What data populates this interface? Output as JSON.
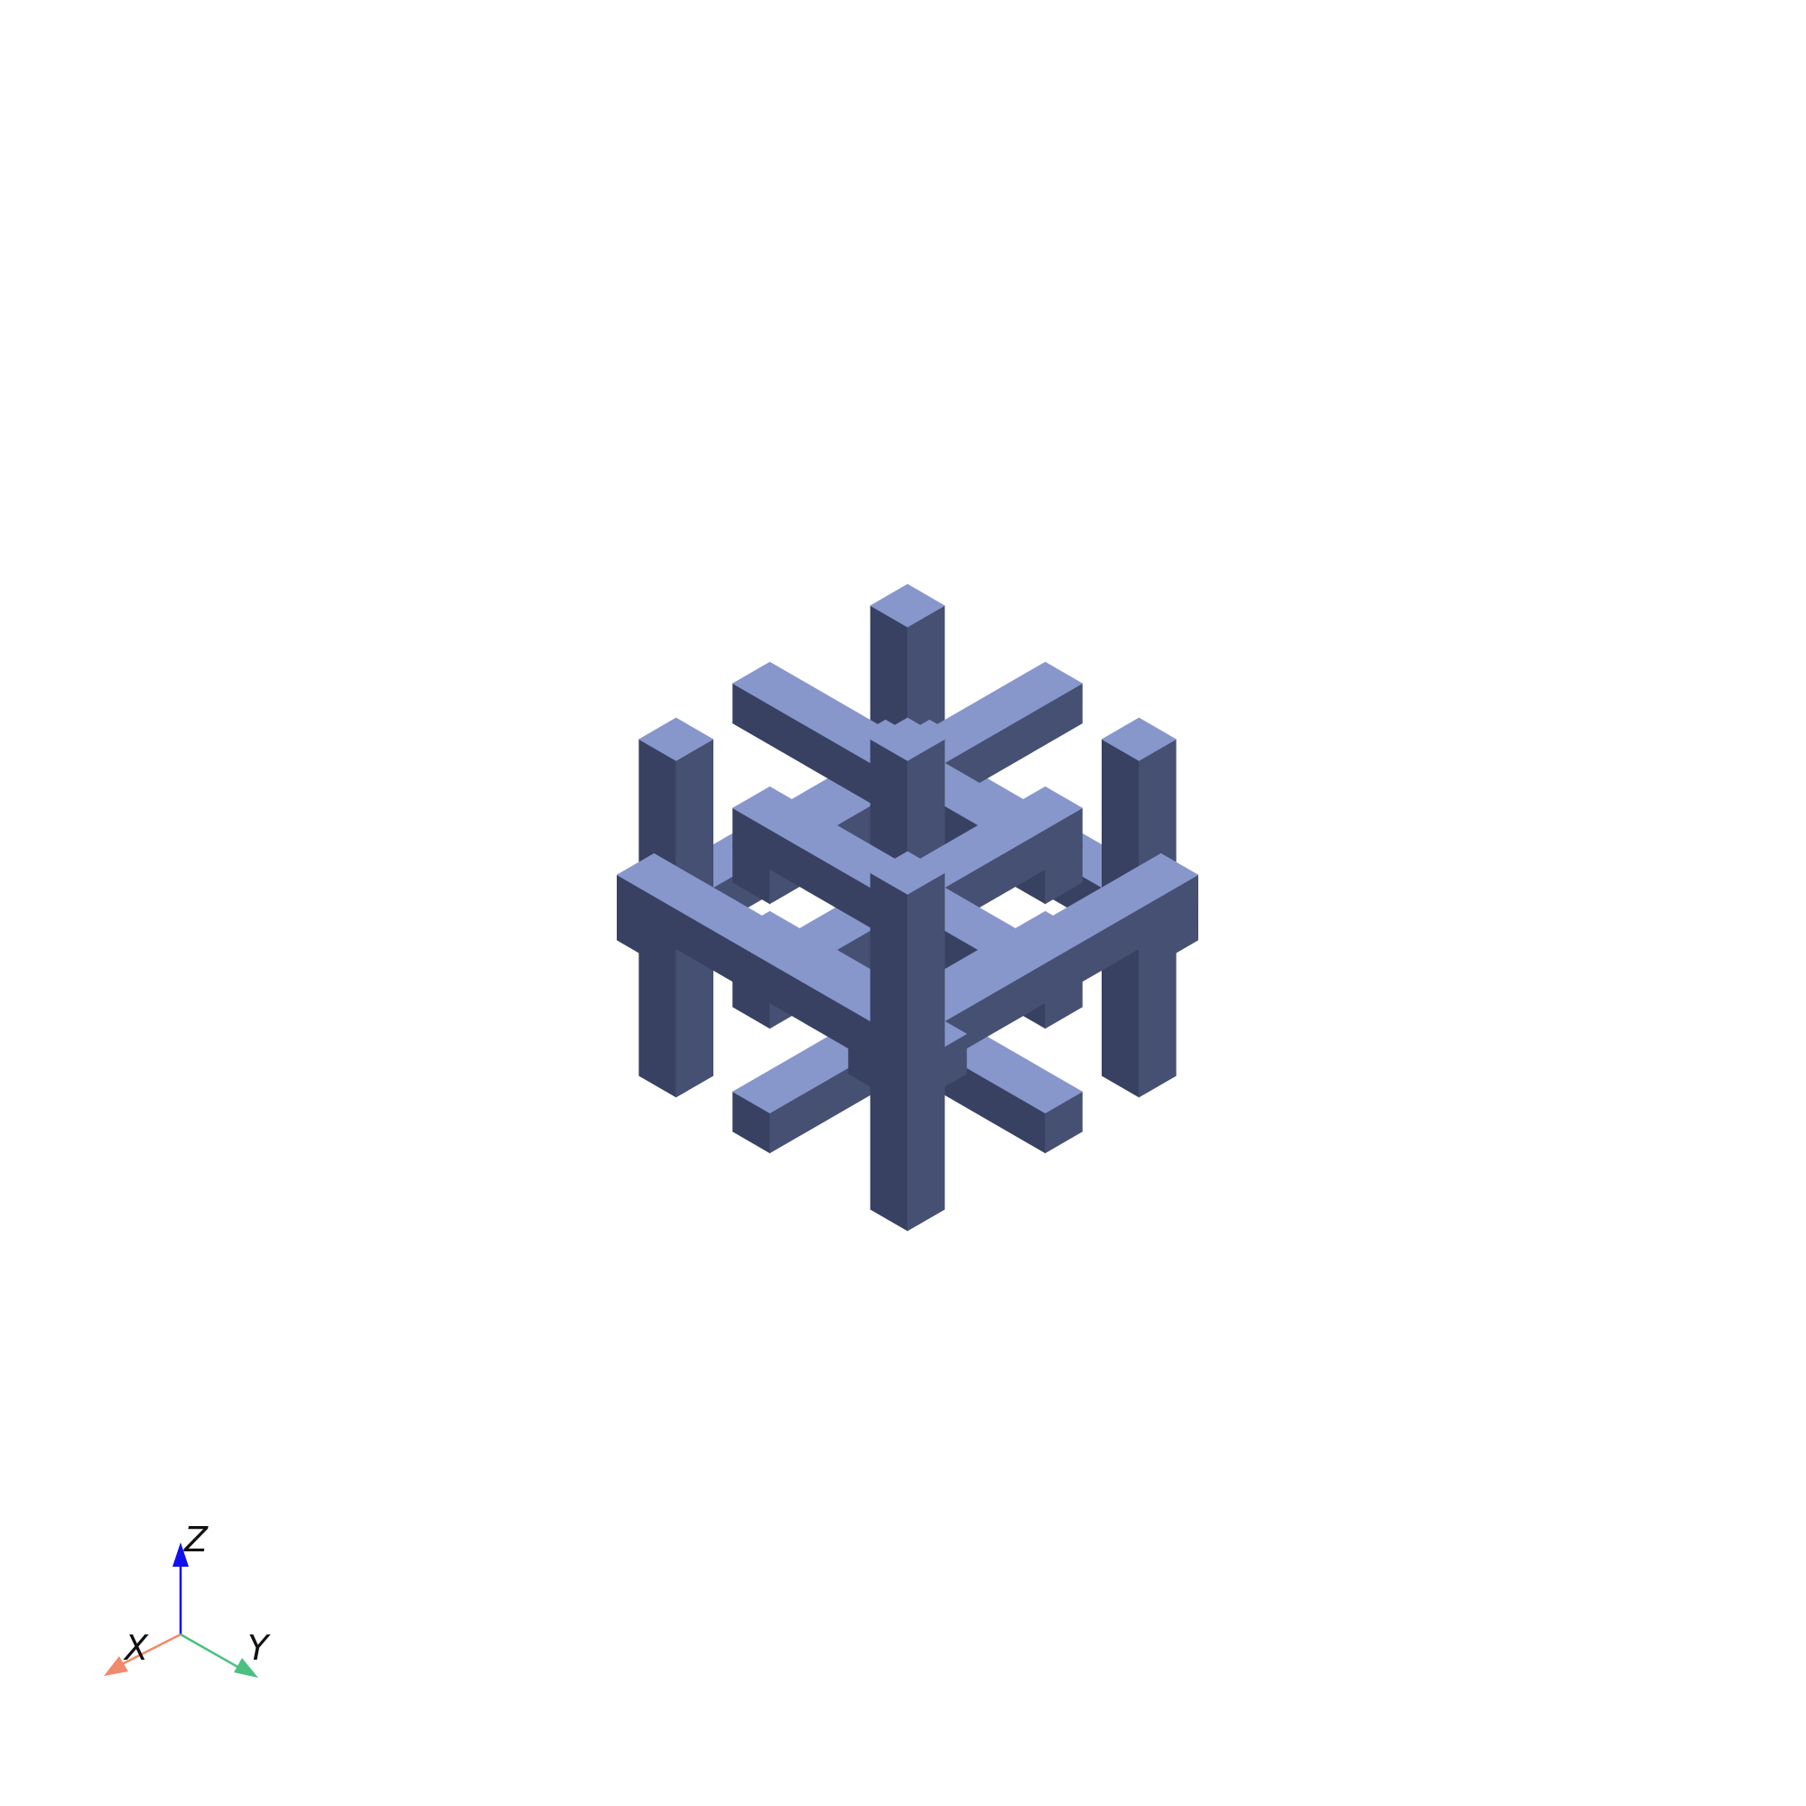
{
  "scene": {
    "type": "3d-lattice-render",
    "background": "#ffffff",
    "colors": {
      "top_face": "#8797cb",
      "right_face": "#465073",
      "left_face": "#394162"
    }
  },
  "orientation_triad": {
    "axes": [
      {
        "label": "Z",
        "color": "#1010ee"
      },
      {
        "label": "X",
        "color": "#f08a6a"
      },
      {
        "label": "Y",
        "color": "#4cbf82"
      }
    ]
  }
}
